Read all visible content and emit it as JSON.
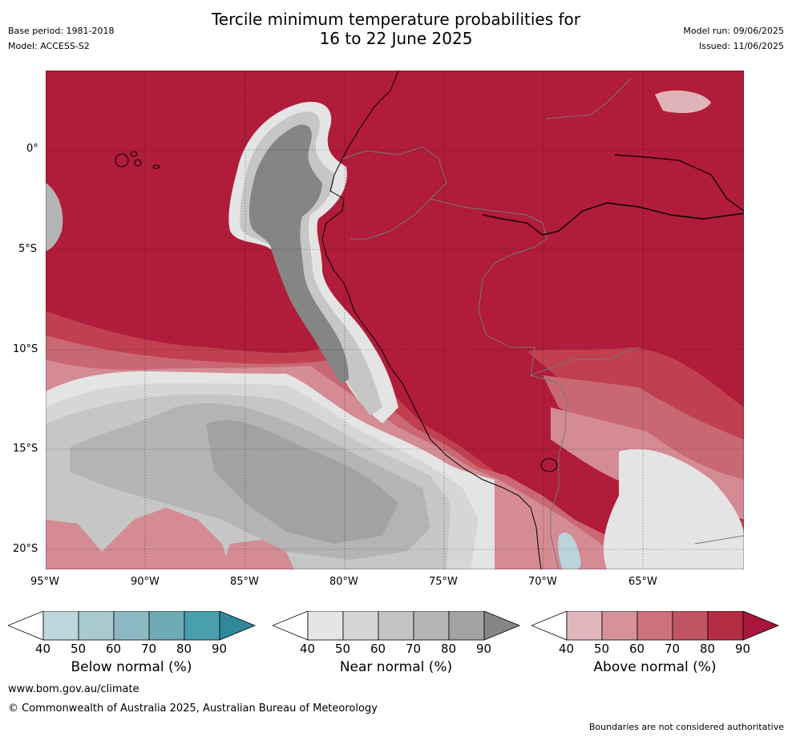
{
  "header": {
    "title_line1": "Tercile minimum temperature probabilities for",
    "title_line2": "16 to 22 June 2025",
    "base_period": "Base period: 1981-2018",
    "model": "Model: ACCESS-S2",
    "model_run": "Model run: 09/06/2025",
    "issued": "Issued: 11/06/2025"
  },
  "map": {
    "lat_labels": [
      "0°",
      "5°S",
      "10°S",
      "15°S",
      "20°S"
    ],
    "lon_labels": [
      "95°W",
      "90°W",
      "85°W",
      "80°W",
      "75°W",
      "70°W",
      "65°W"
    ],
    "colors": {
      "above_90": "#b01c39",
      "above_80": "#c1404f",
      "above_70": "#c96873",
      "above_60": "#d48b94",
      "above_50": "#e0b3b9",
      "near_90": "#858585",
      "near_80": "#a2a2a2",
      "near_70": "#b4b4b4",
      "near_60": "#c6c6c6",
      "near_50": "#d6d6d6",
      "near_40": "#e4e4e4",
      "below_50": "#b9d4da"
    }
  },
  "colorbars": [
    {
      "label": "Below normal (%)",
      "ticks": [
        "40",
        "50",
        "60",
        "70",
        "80",
        "90"
      ],
      "colors": [
        "#bdd6db",
        "#a7c9cf",
        "#8bb8c2",
        "#6eaab6",
        "#4a9fae",
        "#30889c"
      ]
    },
    {
      "label": "Near normal (%)",
      "ticks": [
        "40",
        "50",
        "60",
        "70",
        "80",
        "90"
      ],
      "colors": [
        "#e5e5e5",
        "#d6d6d6",
        "#c4c4c4",
        "#b5b5b5",
        "#a3a3a3",
        "#868686"
      ]
    },
    {
      "label": "Above normal (%)",
      "ticks": [
        "40",
        "50",
        "60",
        "70",
        "80",
        "90"
      ],
      "colors": [
        "#e1b7bd",
        "#d6929b",
        "#cb727c",
        "#c15562",
        "#b42e43",
        "#a8173a"
      ]
    }
  ],
  "footer": {
    "url": "www.bom.gov.au/climate",
    "copyright": "© Commonwealth of Australia 2025, Australian Bureau of Meteorology",
    "disclaimer": "Boundaries are not considered authoritative"
  }
}
